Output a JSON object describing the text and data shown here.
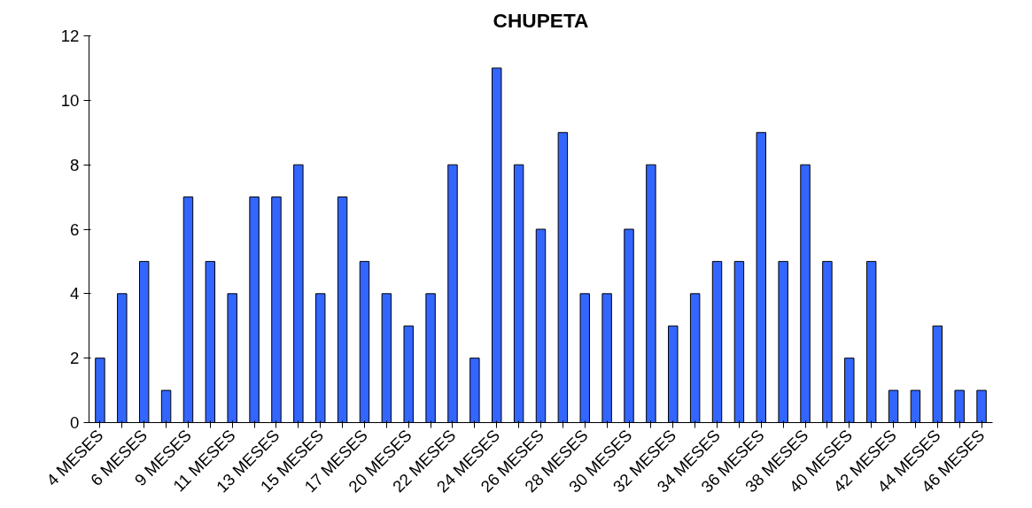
{
  "chart_data": {
    "type": "bar",
    "title": "CHUPETA",
    "categories": [
      "4 MESES",
      null,
      "6 MESES",
      null,
      "9 MESES",
      null,
      "11 MESES",
      null,
      "13 MESES",
      null,
      "15 MESES",
      null,
      "17 MESES",
      null,
      "20 MESES",
      null,
      "22 MESES",
      null,
      "24 MESES",
      null,
      "26 MESES",
      null,
      "28 MESES",
      null,
      "30 MESES",
      null,
      "32 MESES",
      null,
      "34 MESES",
      null,
      "36 MESES",
      null,
      "38 MESES",
      null,
      "40 MESES",
      null,
      "42 MESES",
      null,
      "44 MESES",
      null,
      "46 MESES"
    ],
    "values": [
      2,
      4,
      5,
      1,
      7,
      5,
      4,
      7,
      7,
      8,
      4,
      7,
      5,
      4,
      3,
      4,
      8,
      2,
      11,
      8,
      6,
      9,
      4,
      4,
      6,
      8,
      3,
      4,
      5,
      5,
      9,
      5,
      8,
      5,
      2,
      5,
      1,
      1,
      3,
      1,
      1
    ],
    "color": "#3366ff",
    "ylim": [
      0,
      12
    ],
    "yticks": [
      0,
      2,
      4,
      6,
      8,
      10,
      12
    ],
    "grid": false
  }
}
